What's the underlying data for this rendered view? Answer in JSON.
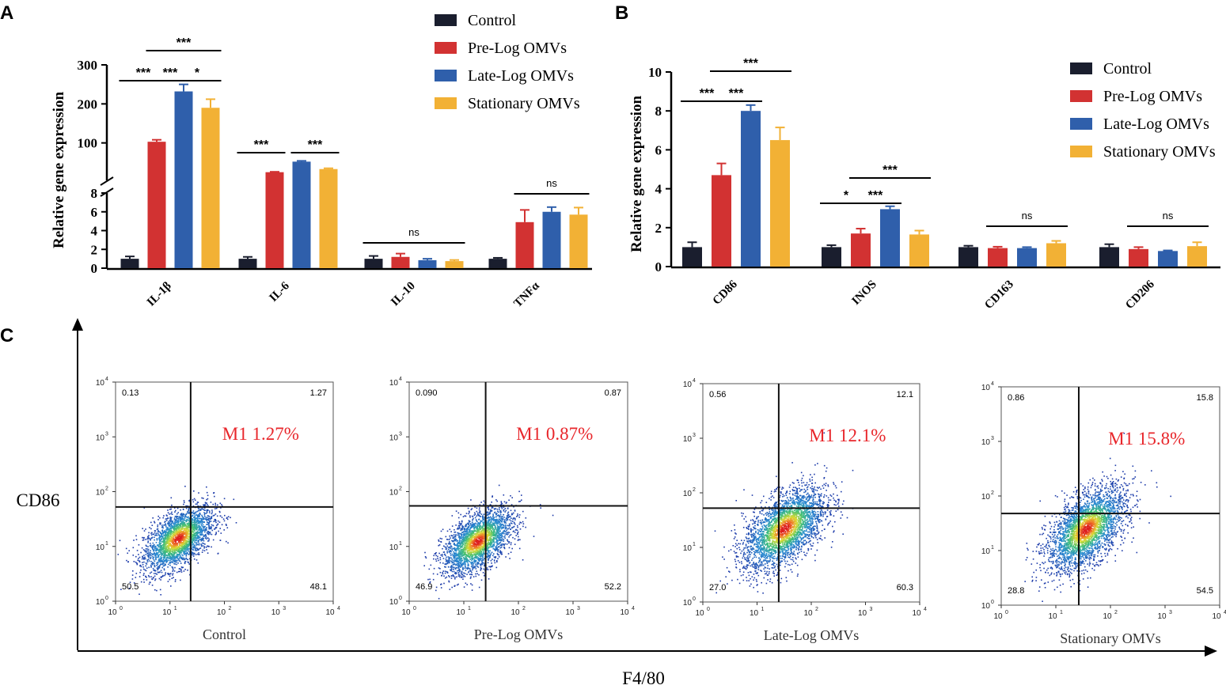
{
  "colors": {
    "Control": "#1a1e2e",
    "Pre-Log OMVs": "#d23232",
    "Late-Log OMVs": "#2f5fab",
    "Stationary OMVs": "#f2b135",
    "axis": "#000000",
    "m1_label": "#e8262b"
  },
  "legend": [
    "Control",
    "Pre-Log OMVs",
    "Late-Log OMVs",
    "Stationary OMVs"
  ],
  "chart_data": [
    {
      "panel": "A",
      "type": "bar",
      "ylabel": "Relative  gene expression",
      "axis_break": true,
      "lower_range": [
        0,
        8
      ],
      "lower_ticks": [
        "0",
        "2",
        "4",
        "6",
        "8"
      ],
      "upper_range": [
        0,
        300
      ],
      "upper_ticks": [
        "100",
        "200",
        "300"
      ],
      "categories": [
        "IL-1β",
        "IL-6",
        "IL-10",
        "TNFα"
      ],
      "series": [
        {
          "name": "Control",
          "values": [
            1.0,
            1.0,
            1.0,
            1.0
          ],
          "errors": [
            0.25,
            0.2,
            0.3,
            0.1
          ]
        },
        {
          "name": "Pre-Log OMVs",
          "values": [
            103,
            25,
            1.2,
            4.9
          ],
          "errors": [
            5,
            1,
            0.35,
            1.3
          ]
        },
        {
          "name": "Late-Log OMVs",
          "values": [
            232,
            52,
            0.85,
            6.0
          ],
          "errors": [
            18,
            2,
            0.15,
            0.5
          ]
        },
        {
          "name": "Stationary OMVs",
          "values": [
            190,
            33,
            0.75,
            5.7
          ],
          "errors": [
            22,
            2,
            0.12,
            0.75
          ]
        }
      ],
      "annotations": [
        {
          "label": "***",
          "category": "IL-1β",
          "from": "Control",
          "to": "Pre-Log OMVs",
          "level": 1
        },
        {
          "label": "***",
          "category": "IL-1β",
          "from": "Pre-Log OMVs",
          "to": "Late-Log OMVs",
          "level": 1
        },
        {
          "label": "*",
          "category": "IL-1β",
          "from": "Late-Log OMVs",
          "to": "Stationary OMVs",
          "level": 1
        },
        {
          "label": "***",
          "category": "IL-1β",
          "from": "Pre-Log OMVs",
          "to": "Stationary OMVs",
          "level": 2
        },
        {
          "label": "***",
          "category": "IL-6",
          "from": "Control",
          "to": "Pre-Log OMVs",
          "level": 1
        },
        {
          "label": "***",
          "category": "IL-6",
          "from": "Late-Log OMVs",
          "to": "Stationary OMVs",
          "level": 1
        },
        {
          "label": "ns",
          "category": "IL-10",
          "from": "Control",
          "to": "Stationary OMVs",
          "level": 1
        },
        {
          "label": "ns",
          "category": "TNFα",
          "from": "Pre-Log OMVs",
          "to": "Stationary OMVs",
          "level": 1
        }
      ]
    },
    {
      "panel": "B",
      "type": "bar",
      "ylabel": "Relative  gene expression",
      "ylim": [
        0,
        10
      ],
      "yticks": [
        "0",
        "2",
        "4",
        "6",
        "8",
        "10"
      ],
      "categories": [
        "CD86",
        "INOS",
        "CD163",
        "CD206"
      ],
      "series": [
        {
          "name": "Control",
          "values": [
            1.0,
            1.0,
            1.0,
            1.0
          ],
          "errors": [
            0.25,
            0.1,
            0.07,
            0.15
          ]
        },
        {
          "name": "Pre-Log OMVs",
          "values": [
            4.7,
            1.7,
            0.95,
            0.9
          ],
          "errors": [
            0.6,
            0.25,
            0.07,
            0.1
          ]
        },
        {
          "name": "Late-Log OMVs",
          "values": [
            8.0,
            2.95,
            0.95,
            0.8
          ],
          "errors": [
            0.3,
            0.15,
            0.05,
            0.03
          ]
        },
        {
          "name": "Stationary OMVs",
          "values": [
            6.5,
            1.65,
            1.2,
            1.05
          ],
          "errors": [
            0.65,
            0.2,
            0.12,
            0.2
          ]
        }
      ],
      "annotations": [
        {
          "label": "***",
          "category": "CD86",
          "from": "Control",
          "to": "Pre-Log OMVs",
          "level": 1
        },
        {
          "label": "***",
          "category": "CD86",
          "from": "Pre-Log OMVs",
          "to": "Late-Log OMVs",
          "level": 1
        },
        {
          "label": "***",
          "category": "CD86",
          "from": "Pre-Log OMVs",
          "to": "Stationary OMVs",
          "level": 2
        },
        {
          "label": "*",
          "category": "INOS",
          "from": "Control",
          "to": "Pre-Log OMVs",
          "level": 1
        },
        {
          "label": "***",
          "category": "INOS",
          "from": "Pre-Log OMVs",
          "to": "Late-Log OMVs",
          "level": 1
        },
        {
          "label": "***",
          "category": "INOS",
          "from": "Pre-Log OMVs",
          "to": "Stationary OMVs",
          "level": 2
        },
        {
          "label": "ns",
          "category": "CD163",
          "from": "Pre-Log OMVs",
          "to": "Stationary OMVs",
          "level": 1
        },
        {
          "label": "ns",
          "category": "CD206",
          "from": "Pre-Log OMVs",
          "to": "Stationary OMVs",
          "level": 1
        }
      ]
    },
    {
      "panel": "C",
      "type": "scatter",
      "xlabel": "F4/80",
      "ylabel": "CD86",
      "axis_tick_labels": [
        "10",
        "10",
        "10",
        "10",
        "10"
      ],
      "axis_tick_exponents": [
        "0",
        "1",
        "2",
        "3",
        "4"
      ],
      "gate_log": {
        "x": 1.38,
        "y": 1.73
      },
      "plots": [
        {
          "label": "Control",
          "quadrants": {
            "UL": "0.13",
            "UR": "1.27",
            "LL": "50.5",
            "LR": "48.1"
          },
          "m1_text": "M1 1.27%"
        },
        {
          "label": "Pre-Log OMVs",
          "quadrants": {
            "UL": "0.090",
            "UR": "0.87",
            "LL": "46.9",
            "LR": "52.2"
          },
          "m1_text": "M1 0.87%"
        },
        {
          "label": "Late-Log OMVs",
          "quadrants": {
            "UL": "0.56",
            "UR": "12.1",
            "LL": "27.0",
            "LR": "60.3"
          },
          "m1_text": "M1 12.1%"
        },
        {
          "label": "Stationary OMVs",
          "quadrants": {
            "UL": "0.86",
            "UR": "15.8",
            "LL": "28.8",
            "LR": "54.5"
          },
          "m1_text": "M1 15.8%"
        }
      ]
    }
  ],
  "panel_letters": [
    "A",
    "B",
    "C"
  ]
}
